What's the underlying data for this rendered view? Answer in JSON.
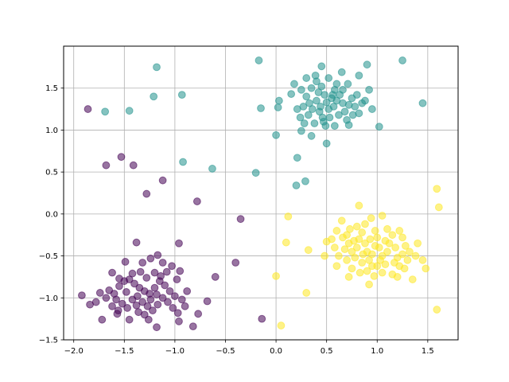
{
  "chart_data": {
    "type": "scatter",
    "title": "",
    "xlabel": "",
    "ylabel": "",
    "xlim": [
      -2.1,
      1.8
    ],
    "ylim": [
      -1.5,
      2.0
    ],
    "grid": true,
    "xticks": [
      -2.0,
      -1.5,
      -1.0,
      -0.5,
      0.0,
      0.5,
      1.0,
      1.5
    ],
    "xtick_labels": [
      "−2.0",
      "−1.5",
      "−1.0",
      "−0.5",
      "0.0",
      "0.5",
      "1.0",
      "1.5"
    ],
    "yticks": [
      -1.5,
      -1.0,
      -0.5,
      0.0,
      0.5,
      1.0,
      1.5
    ],
    "ytick_labels": [
      "−1.5",
      "−1.0",
      "−0.5",
      "0.0",
      "0.5",
      "1.0",
      "1.5"
    ],
    "marker_alpha": 0.55,
    "series": [
      {
        "color": "#440154",
        "points": [
          [
            -1.86,
            1.25
          ],
          [
            -1.68,
            0.58
          ],
          [
            -1.53,
            0.68
          ],
          [
            -1.41,
            0.58
          ],
          [
            -1.28,
            0.24
          ],
          [
            -1.12,
            0.4
          ],
          [
            -0.78,
            0.15
          ],
          [
            -0.35,
            -0.06
          ],
          [
            -0.4,
            -0.58
          ],
          [
            -0.6,
            -0.75
          ],
          [
            -0.14,
            -1.25
          ],
          [
            -0.68,
            -1.04
          ],
          [
            -0.96,
            -0.35
          ],
          [
            -1.38,
            -0.34
          ],
          [
            -1.92,
            -0.97
          ],
          [
            -1.84,
            -1.08
          ],
          [
            -1.72,
            -1.26
          ],
          [
            -1.57,
            -1.19
          ],
          [
            -1.45,
            -1.26
          ],
          [
            -1.26,
            -1.26
          ],
          [
            -1.18,
            -1.35
          ],
          [
            -0.96,
            -1.28
          ],
          [
            -0.82,
            -1.34
          ],
          [
            -0.77,
            -1.19
          ],
          [
            -0.88,
            -0.92
          ],
          [
            -0.95,
            -0.68
          ],
          [
            -1.03,
            -0.62
          ],
          [
            -1.12,
            -0.58
          ],
          [
            -1.17,
            -0.49
          ],
          [
            -1.24,
            -0.53
          ],
          [
            -1.32,
            -0.58
          ],
          [
            -1.49,
            -0.57
          ],
          [
            -1.62,
            -0.7
          ],
          [
            -1.65,
            -0.91
          ],
          [
            -1.6,
            -0.95
          ],
          [
            -1.55,
            -0.86
          ],
          [
            -1.5,
            -0.8
          ],
          [
            -1.45,
            -0.78
          ],
          [
            -1.4,
            -0.83
          ],
          [
            -1.35,
            -0.88
          ],
          [
            -1.3,
            -0.92
          ],
          [
            -1.25,
            -0.95
          ],
          [
            -1.2,
            -0.88
          ],
          [
            -1.15,
            -0.8
          ],
          [
            -1.1,
            -0.85
          ],
          [
            -1.05,
            -0.92
          ],
          [
            -1.0,
            -0.98
          ],
          [
            -1.58,
            -1.02
          ],
          [
            -1.52,
            -1.07
          ],
          [
            -1.47,
            -1.12
          ],
          [
            -1.42,
            -1.02
          ],
          [
            -1.37,
            -0.98
          ],
          [
            -1.32,
            -1.05
          ],
          [
            -1.27,
            -1.1
          ],
          [
            -1.22,
            -1.15
          ],
          [
            -1.17,
            -1.08
          ],
          [
            -1.12,
            -1.0
          ],
          [
            -1.07,
            -1.05
          ],
          [
            -1.02,
            -1.12
          ],
          [
            -0.97,
            -1.18
          ],
          [
            -1.62,
            -1.1
          ],
          [
            -1.56,
            -1.15
          ],
          [
            -1.36,
            -1.17
          ],
          [
            -1.3,
            -1.2
          ],
          [
            -1.24,
            -1.02
          ],
          [
            -1.18,
            -0.96
          ],
          [
            -1.14,
            -0.74
          ],
          [
            -1.28,
            -0.76
          ],
          [
            -1.42,
            -0.71
          ],
          [
            -1.55,
            -0.77
          ],
          [
            -1.68,
            -1.0
          ],
          [
            -1.74,
            -0.94
          ],
          [
            -1.78,
            -1.05
          ],
          [
            -1.48,
            -0.93
          ],
          [
            -1.38,
            -1.09
          ],
          [
            -1.2,
            -0.7
          ],
          [
            -1.08,
            -0.69
          ],
          [
            -0.98,
            -0.78
          ],
          [
            -0.93,
            -1.02
          ],
          [
            -0.9,
            -1.1
          ],
          [
            -1.34,
            -0.69
          ]
        ]
      },
      {
        "color": "#21918c",
        "points": [
          [
            -1.69,
            1.22
          ],
          [
            -1.45,
            1.23
          ],
          [
            -1.18,
            1.75
          ],
          [
            -1.21,
            1.4
          ],
          [
            -0.93,
            1.42
          ],
          [
            -0.92,
            0.62
          ],
          [
            -0.63,
            0.54
          ],
          [
            -0.2,
            0.49
          ],
          [
            -0.17,
            1.83
          ],
          [
            -0.15,
            1.26
          ],
          [
            0.0,
            0.94
          ],
          [
            0.21,
            0.67
          ],
          [
            0.2,
            0.34
          ],
          [
            0.29,
            0.39
          ],
          [
            1.25,
            1.83
          ],
          [
            1.45,
            1.32
          ],
          [
            1.02,
            1.04
          ],
          [
            0.5,
            0.84
          ],
          [
            0.35,
            0.93
          ],
          [
            0.25,
            0.99
          ],
          [
            0.02,
            1.27
          ],
          [
            0.03,
            1.35
          ],
          [
            0.3,
            1.62
          ],
          [
            0.45,
            1.76
          ],
          [
            0.65,
            1.69
          ],
          [
            0.82,
            1.65
          ],
          [
            0.9,
            1.78
          ],
          [
            0.92,
            1.48
          ],
          [
            0.88,
            1.35
          ],
          [
            0.72,
            1.06
          ],
          [
            0.58,
            1.05
          ],
          [
            0.46,
            1.15
          ],
          [
            0.15,
            1.43
          ],
          [
            0.18,
            1.55
          ],
          [
            0.25,
            1.48
          ],
          [
            0.3,
            1.4
          ],
          [
            0.33,
            1.32
          ],
          [
            0.36,
            1.25
          ],
          [
            0.4,
            1.35
          ],
          [
            0.42,
            1.45
          ],
          [
            0.45,
            1.52
          ],
          [
            0.48,
            1.42
          ],
          [
            0.5,
            1.33
          ],
          [
            0.52,
            1.25
          ],
          [
            0.55,
            1.38
          ],
          [
            0.58,
            1.48
          ],
          [
            0.6,
            1.55
          ],
          [
            0.63,
            1.42
          ],
          [
            0.66,
            1.32
          ],
          [
            0.68,
            1.22
          ],
          [
            0.72,
            1.3
          ],
          [
            0.75,
            1.38
          ],
          [
            0.78,
            1.28
          ],
          [
            0.82,
            1.2
          ],
          [
            0.85,
            1.32
          ],
          [
            0.27,
            1.28
          ],
          [
            0.32,
            1.18
          ],
          [
            0.38,
            1.08
          ],
          [
            0.43,
            1.22
          ],
          [
            0.47,
            1.1
          ],
          [
            0.53,
            1.15
          ],
          [
            0.57,
            1.28
          ],
          [
            0.62,
            1.18
          ],
          [
            0.7,
            1.12
          ],
          [
            0.76,
            1.18
          ],
          [
            0.8,
            1.42
          ],
          [
            0.21,
            1.25
          ],
          [
            0.24,
            1.15
          ],
          [
            0.4,
            1.58
          ],
          [
            0.52,
            1.62
          ],
          [
            0.6,
            1.35
          ],
          [
            0.35,
            1.5
          ],
          [
            0.44,
            1.28
          ],
          [
            0.56,
            1.42
          ],
          [
            0.39,
            1.65
          ],
          [
            0.66,
            1.48
          ],
          [
            0.71,
            1.55
          ],
          [
            0.49,
            1.05
          ],
          [
            0.28,
            1.08
          ],
          [
            0.95,
            1.25
          ]
        ]
      },
      {
        "color": "#fde725",
        "points": [
          [
            1.59,
            0.3
          ],
          [
            1.61,
            0.08
          ],
          [
            1.59,
            -1.14
          ],
          [
            0.05,
            -1.33
          ],
          [
            0.0,
            -0.74
          ],
          [
            0.3,
            -0.94
          ],
          [
            0.1,
            -0.34
          ],
          [
            0.12,
            -0.03
          ],
          [
            0.32,
            -0.43
          ],
          [
            0.5,
            -0.33
          ],
          [
            0.82,
            0.1
          ],
          [
            1.05,
            -0.02
          ],
          [
            0.94,
            -0.05
          ],
          [
            1.4,
            -0.35
          ],
          [
            1.45,
            -0.55
          ],
          [
            1.48,
            -0.65
          ],
          [
            1.35,
            -0.78
          ],
          [
            1.2,
            -0.75
          ],
          [
            0.92,
            -0.84
          ],
          [
            0.72,
            -0.75
          ],
          [
            0.48,
            -0.5
          ],
          [
            0.6,
            -0.62
          ],
          [
            0.6,
            -0.2
          ],
          [
            0.65,
            -0.08
          ],
          [
            0.7,
            -0.25
          ],
          [
            0.72,
            -0.35
          ],
          [
            0.75,
            -0.45
          ],
          [
            0.78,
            -0.52
          ],
          [
            0.8,
            -0.4
          ],
          [
            0.82,
            -0.3
          ],
          [
            0.85,
            -0.22
          ],
          [
            0.88,
            -0.35
          ],
          [
            0.9,
            -0.45
          ],
          [
            0.92,
            -0.55
          ],
          [
            0.95,
            -0.48
          ],
          [
            0.98,
            -0.38
          ],
          [
            1.0,
            -0.28
          ],
          [
            1.02,
            -0.4
          ],
          [
            1.05,
            -0.5
          ],
          [
            1.08,
            -0.6
          ],
          [
            1.1,
            -0.45
          ],
          [
            1.12,
            -0.35
          ],
          [
            1.15,
            -0.25
          ],
          [
            1.18,
            -0.4
          ],
          [
            1.2,
            -0.52
          ],
          [
            1.22,
            -0.62
          ],
          [
            1.25,
            -0.48
          ],
          [
            1.28,
            -0.38
          ],
          [
            1.3,
            -0.55
          ],
          [
            0.7,
            -0.55
          ],
          [
            0.75,
            -0.65
          ],
          [
            0.85,
            -0.58
          ],
          [
            0.9,
            -0.68
          ],
          [
            1.0,
            -0.62
          ],
          [
            1.05,
            -0.7
          ],
          [
            0.98,
            -0.2
          ],
          [
            0.68,
            -0.42
          ],
          [
            0.62,
            -0.5
          ],
          [
            0.58,
            -0.4
          ],
          [
            0.55,
            -0.3
          ],
          [
            0.8,
            -0.15
          ],
          [
            1.1,
            -0.18
          ],
          [
            1.25,
            -0.28
          ],
          [
            1.32,
            -0.45
          ],
          [
            1.38,
            -0.5
          ],
          [
            1.15,
            -0.72
          ],
          [
            0.95,
            -0.62
          ],
          [
            0.86,
            -0.48
          ],
          [
            0.77,
            -0.32
          ],
          [
            1.03,
            -0.55
          ],
          [
            0.93,
            -0.3
          ],
          [
            1.17,
            -0.58
          ],
          [
            0.66,
            -0.28
          ],
          [
            1.27,
            -0.65
          ],
          [
            0.83,
            -0.7
          ],
          [
            1.08,
            -0.32
          ],
          [
            0.73,
            -0.18
          ],
          [
            1.22,
            -0.2
          ],
          [
            0.97,
            -0.74
          ],
          [
            0.88,
            -0.12
          ]
        ]
      }
    ]
  }
}
